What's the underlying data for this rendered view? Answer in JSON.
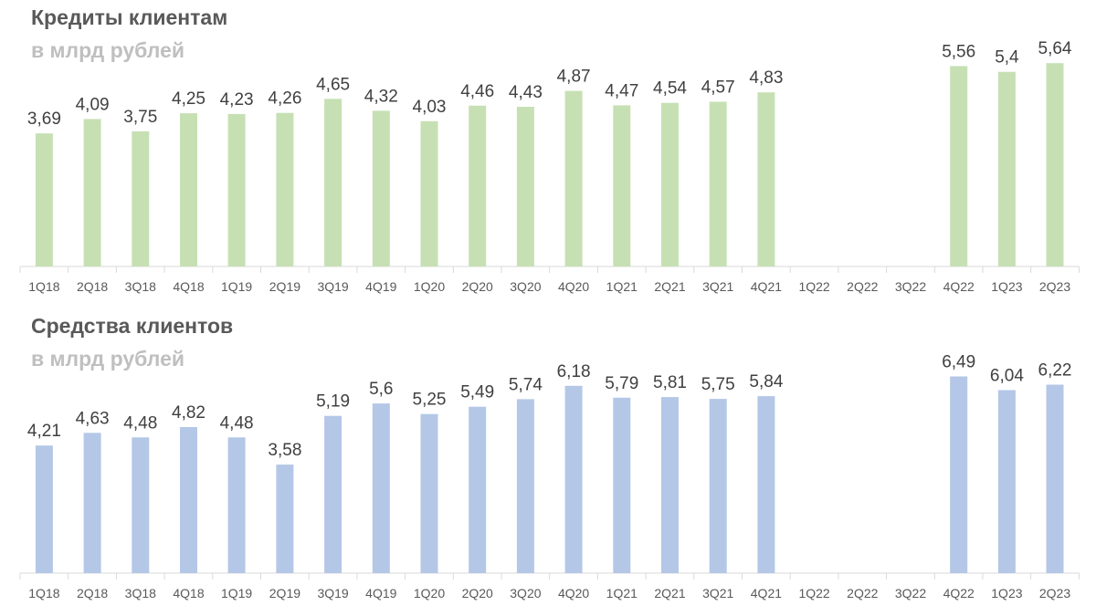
{
  "chart_data": [
    {
      "type": "bar",
      "title": "Кредиты клиентам",
      "subtitle": "в млрд рублей",
      "color": "#c6e0b4",
      "categories": [
        "1Q18",
        "2Q18",
        "3Q18",
        "4Q18",
        "1Q19",
        "2Q19",
        "3Q19",
        "4Q19",
        "1Q20",
        "2Q20",
        "3Q20",
        "4Q20",
        "1Q21",
        "2Q21",
        "3Q21",
        "4Q21",
        "1Q22",
        "2Q22",
        "3Q22",
        "4Q22",
        "1Q23",
        "2Q23"
      ],
      "values": [
        3.69,
        4.09,
        3.75,
        4.25,
        4.23,
        4.26,
        4.65,
        4.32,
        4.03,
        4.46,
        4.43,
        4.87,
        4.47,
        4.54,
        4.57,
        4.83,
        null,
        null,
        null,
        5.56,
        5.4,
        5.64
      ],
      "labels": [
        "3,69",
        "4,09",
        "3,75",
        "4,25",
        "4,23",
        "4,26",
        "4,65",
        "4,32",
        "4,03",
        "4,46",
        "4,43",
        "4,87",
        "4,47",
        "4,54",
        "4,57",
        "4,83",
        "",
        "",
        "",
        "5,56",
        "5,4",
        "5,64"
      ],
      "xlabel": "",
      "ylabel": "",
      "ylim": [
        0,
        6
      ],
      "grid": false
    },
    {
      "type": "bar",
      "title": "Средства клиентов",
      "subtitle": "в млрд рублей",
      "color": "#b4c7e7",
      "categories": [
        "1Q18",
        "2Q18",
        "3Q18",
        "4Q18",
        "1Q19",
        "2Q19",
        "3Q19",
        "4Q19",
        "1Q20",
        "2Q20",
        "3Q20",
        "4Q20",
        "1Q21",
        "2Q21",
        "3Q21",
        "4Q21",
        "1Q22",
        "2Q22",
        "3Q22",
        "4Q22",
        "1Q23",
        "2Q23"
      ],
      "values": [
        4.21,
        4.63,
        4.48,
        4.82,
        4.48,
        3.58,
        5.19,
        5.6,
        5.25,
        5.49,
        5.74,
        6.18,
        5.79,
        5.81,
        5.75,
        5.84,
        null,
        null,
        null,
        6.49,
        6.04,
        6.22
      ],
      "labels": [
        "4,21",
        "4,63",
        "4,48",
        "4,82",
        "4,48",
        "3,58",
        "5,19",
        "5,6",
        "5,25",
        "5,49",
        "5,74",
        "6,18",
        "5,79",
        "5,81",
        "5,75",
        "5,84",
        "",
        "",
        "",
        "6,49",
        "6,04",
        "6,22"
      ],
      "xlabel": "",
      "ylabel": "",
      "ylim": [
        0,
        6.8
      ],
      "grid": false
    }
  ]
}
